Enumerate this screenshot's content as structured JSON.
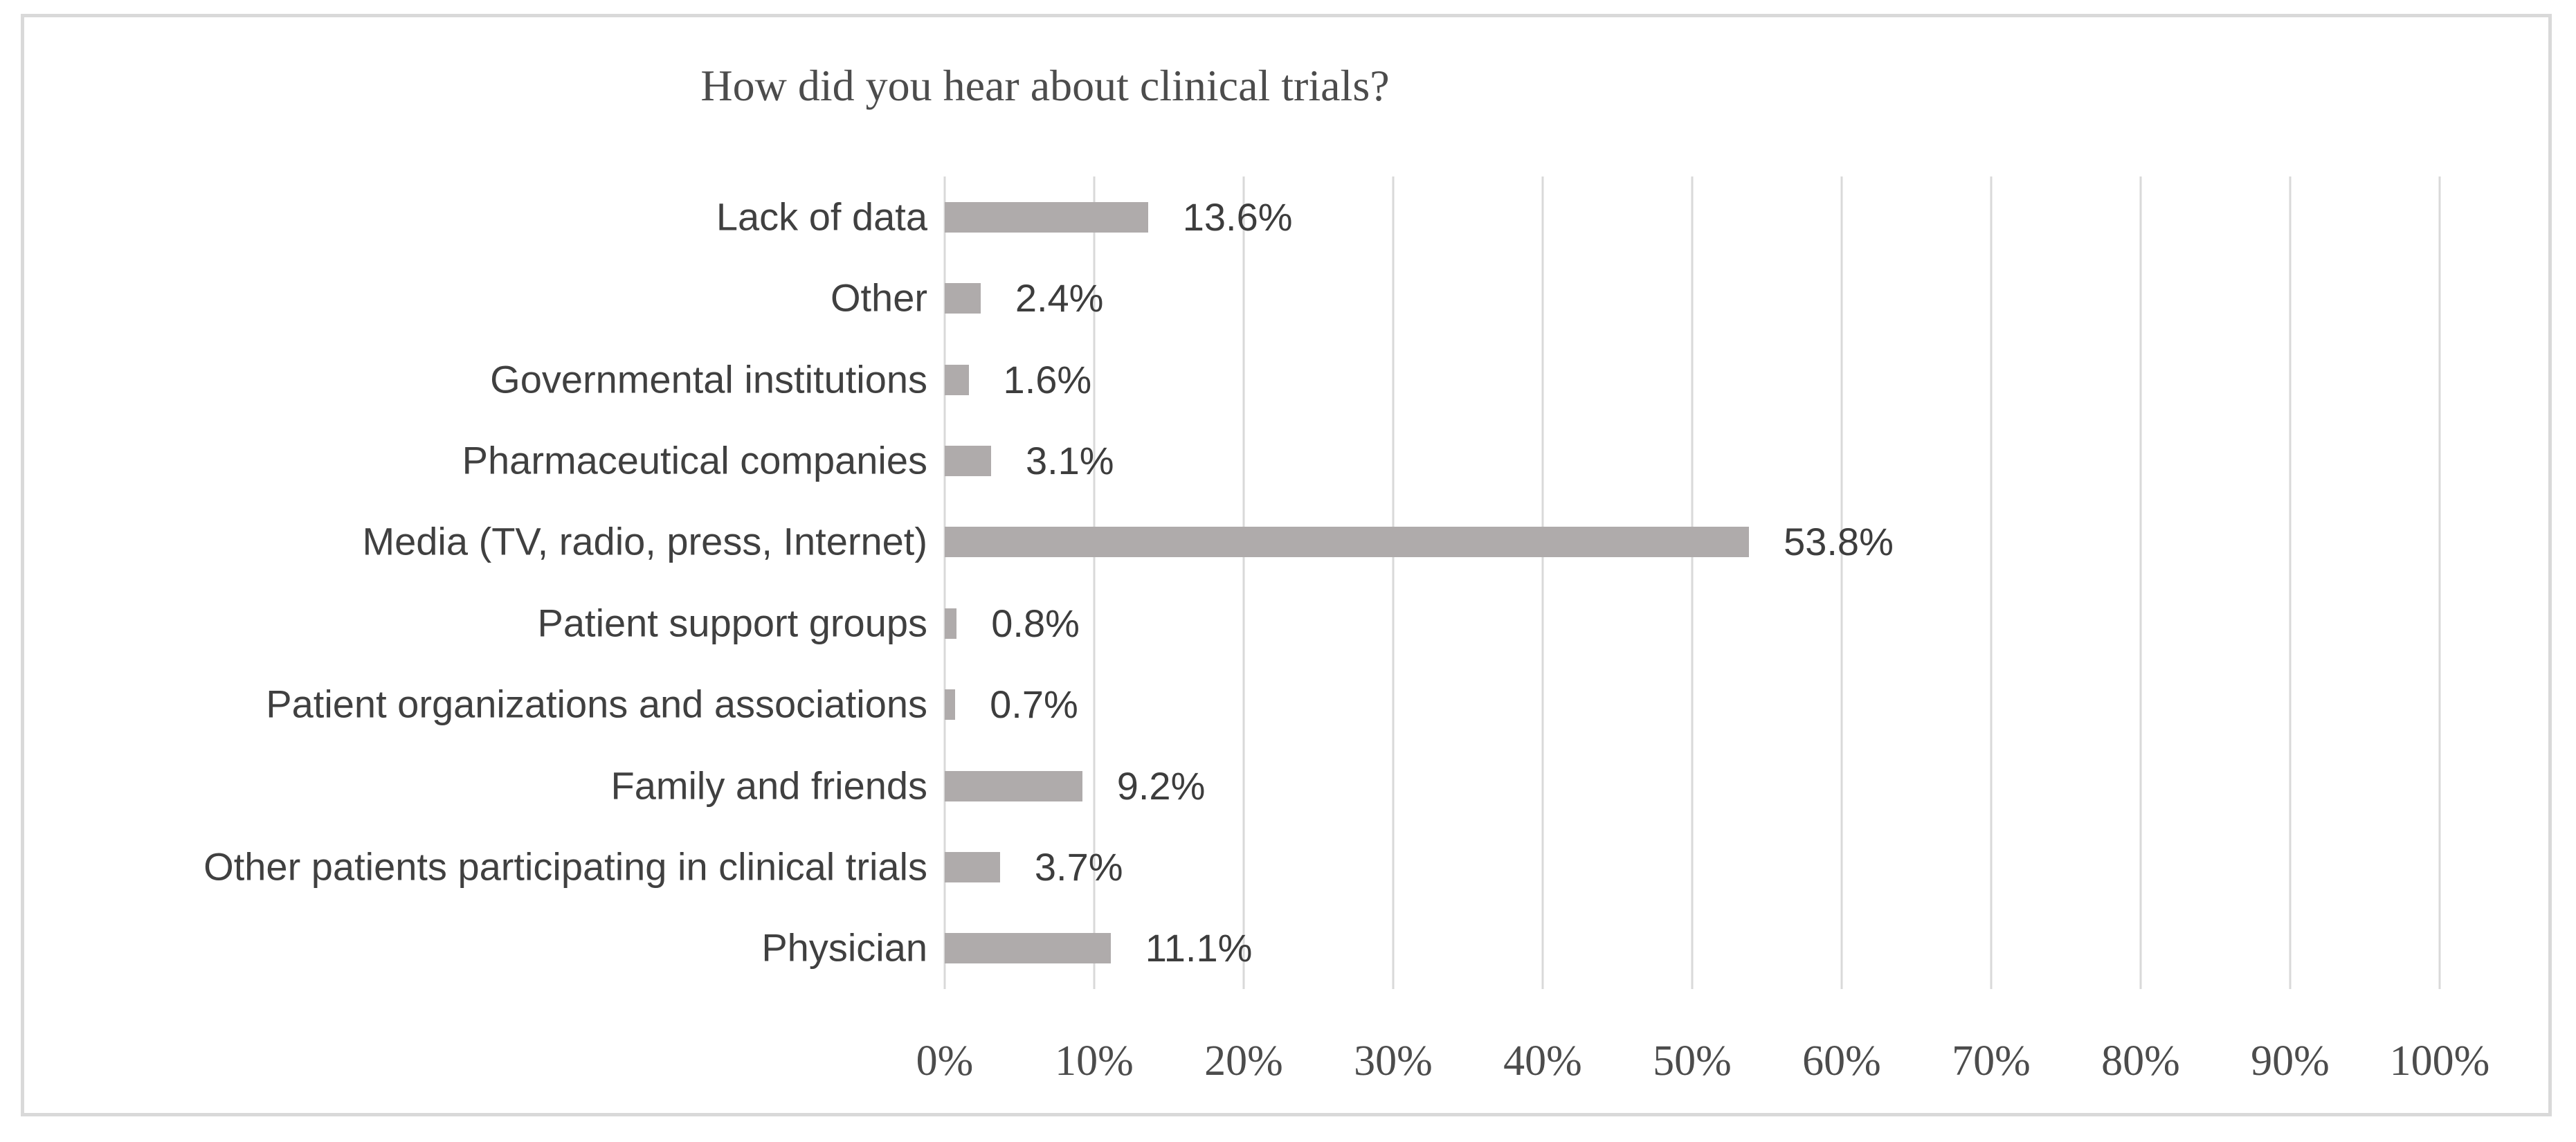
{
  "chart_data": {
    "type": "bar",
    "orientation": "horizontal",
    "title": "How did you hear about clinical trials?",
    "categories": [
      "Lack of data",
      "Other",
      "Governmental institutions",
      "Pharmaceutical companies",
      "Media (TV, radio, press, Internet)",
      "Patient support groups",
      "Patient organizations and associations",
      "Family and friends",
      "Other patients participating in clinical trials",
      "Physician"
    ],
    "values": [
      13.6,
      2.4,
      1.6,
      3.1,
      53.8,
      0.8,
      0.7,
      9.2,
      3.7,
      11.1
    ],
    "value_labels": [
      "13.6%",
      "2.4%",
      "1.6%",
      "3.1%",
      "53.8%",
      "0.8%",
      "0.7%",
      "9.2%",
      "3.7%",
      "11.1%"
    ],
    "xlabel": "",
    "ylabel": "",
    "xlim": [
      0,
      100
    ],
    "x_tick_values": [
      0,
      10,
      20,
      30,
      40,
      50,
      60,
      70,
      80,
      90,
      100
    ],
    "x_tick_labels": [
      "0%",
      "10%",
      "20%",
      "30%",
      "40%",
      "50%",
      "60%",
      "70%",
      "80%",
      "90%",
      "100%"
    ],
    "grid": "vertical",
    "legend": "none",
    "colors": {
      "bar": "#afabab",
      "gridline": "#d9d9d9",
      "frame_border": "#d9d9d9",
      "background": "#ffffff",
      "title_text": "#4c4c4c",
      "tick_text": "#4c4c4c",
      "label_text": "#404040",
      "value_text": "#3d3d3d"
    }
  }
}
